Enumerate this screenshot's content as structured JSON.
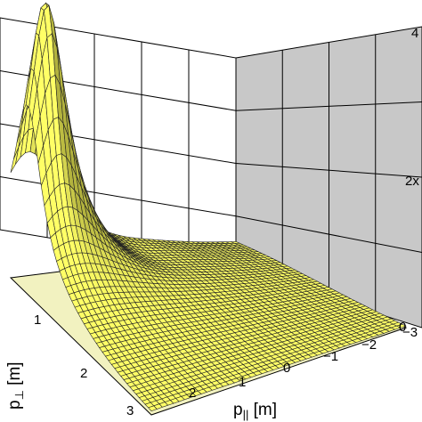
{
  "chart_data": {
    "type": "surface3d",
    "title": "",
    "xlabel": {
      "base": "p",
      "sub": "⊥",
      "unit": " [m]"
    },
    "ylabel": {
      "base": "p",
      "sub": "||",
      "unit": " [m]"
    },
    "zlabel": "",
    "x_ticks": [
      "1",
      "2",
      "3"
    ],
    "y_ticks": [
      "2",
      "1",
      "0",
      "−1",
      "−2",
      "−3"
    ],
    "z_ticks": [
      "0",
      "2x",
      "4"
    ],
    "xlim": [
      0,
      3
    ],
    "ylim": [
      3,
      -3
    ],
    "peak": {
      "x": 0.5,
      "y": 2.2,
      "z": "max"
    },
    "surface_color": "#ffff66",
    "surface_shade_color": "#9a9a30",
    "mesh_color": "#222222",
    "back_wall_color": "#c8c8c8",
    "grid": true
  }
}
